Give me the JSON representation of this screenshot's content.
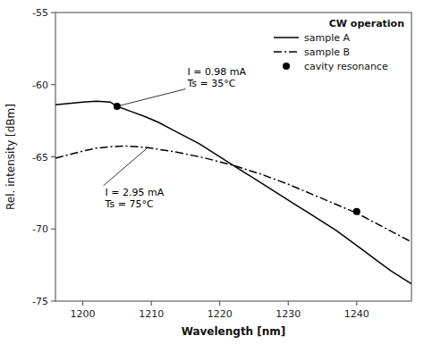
{
  "chart_data": {
    "type": "line",
    "xlabel": "Wavelength [nm]",
    "ylabel": "Rel. intensity [dBm]",
    "xlim": [
      1196,
      1248
    ],
    "ylim": [
      -75,
      -55
    ],
    "xticks": [
      1200,
      1210,
      1220,
      1230,
      1240
    ],
    "yticks": [
      -75,
      -70,
      -65,
      -60,
      -55
    ],
    "legend": "upper right",
    "legend_title": "CW operation",
    "series": [
      {
        "name": "sample A",
        "type": "line",
        "color": "#000000",
        "line_style": "solid",
        "x": [
          1196,
          1198,
          1200,
          1202,
          1204,
          1205,
          1207,
          1209,
          1211,
          1213,
          1215,
          1217,
          1219,
          1221,
          1223,
          1225,
          1227,
          1229,
          1231,
          1233,
          1235,
          1237,
          1239,
          1241,
          1243,
          1245,
          1247,
          1248
        ],
        "values": [
          -61.4,
          -61.3,
          -61.2,
          -61.15,
          -61.2,
          -61.5,
          -61.85,
          -62.2,
          -62.6,
          -63.1,
          -63.6,
          -64.1,
          -64.7,
          -65.3,
          -65.9,
          -66.5,
          -67.1,
          -67.7,
          -68.3,
          -68.9,
          -69.5,
          -70.1,
          -70.8,
          -71.5,
          -72.2,
          -72.9,
          -73.5,
          -73.8
        ]
      },
      {
        "name": "sample B",
        "type": "line",
        "color": "#000000",
        "line_style": "dashdot",
        "x": [
          1196,
          1198,
          1200,
          1202,
          1204,
          1206,
          1208,
          1210,
          1212,
          1214,
          1216,
          1218,
          1220,
          1222,
          1224,
          1226,
          1228,
          1230,
          1232,
          1234,
          1236,
          1238,
          1240,
          1242,
          1244,
          1246,
          1248
        ],
        "values": [
          -65.1,
          -64.85,
          -64.6,
          -64.4,
          -64.3,
          -64.25,
          -64.3,
          -64.4,
          -64.55,
          -64.7,
          -64.9,
          -65.1,
          -65.35,
          -65.6,
          -65.9,
          -66.2,
          -66.55,
          -66.9,
          -67.3,
          -67.7,
          -68.1,
          -68.5,
          -68.9,
          -69.4,
          -69.9,
          -70.4,
          -70.9
        ]
      },
      {
        "name": "cavity resonance",
        "type": "scatter",
        "color": "#000000",
        "marker": "circle",
        "x": [
          1205,
          1240
        ],
        "values": [
          -61.5,
          -68.8
        ]
      }
    ],
    "annotations": [
      {
        "text": "I = 0.98 mA\nTs = 35°C",
        "x": 1205,
        "y": -61.5,
        "text_x": 1215,
        "text_y": -60.3
      },
      {
        "text": "I = 2.95 mA\nTs = 75°C",
        "x": 1209.5,
        "y": -64.35,
        "text_x": 1203,
        "text_y": -67.0
      }
    ]
  }
}
